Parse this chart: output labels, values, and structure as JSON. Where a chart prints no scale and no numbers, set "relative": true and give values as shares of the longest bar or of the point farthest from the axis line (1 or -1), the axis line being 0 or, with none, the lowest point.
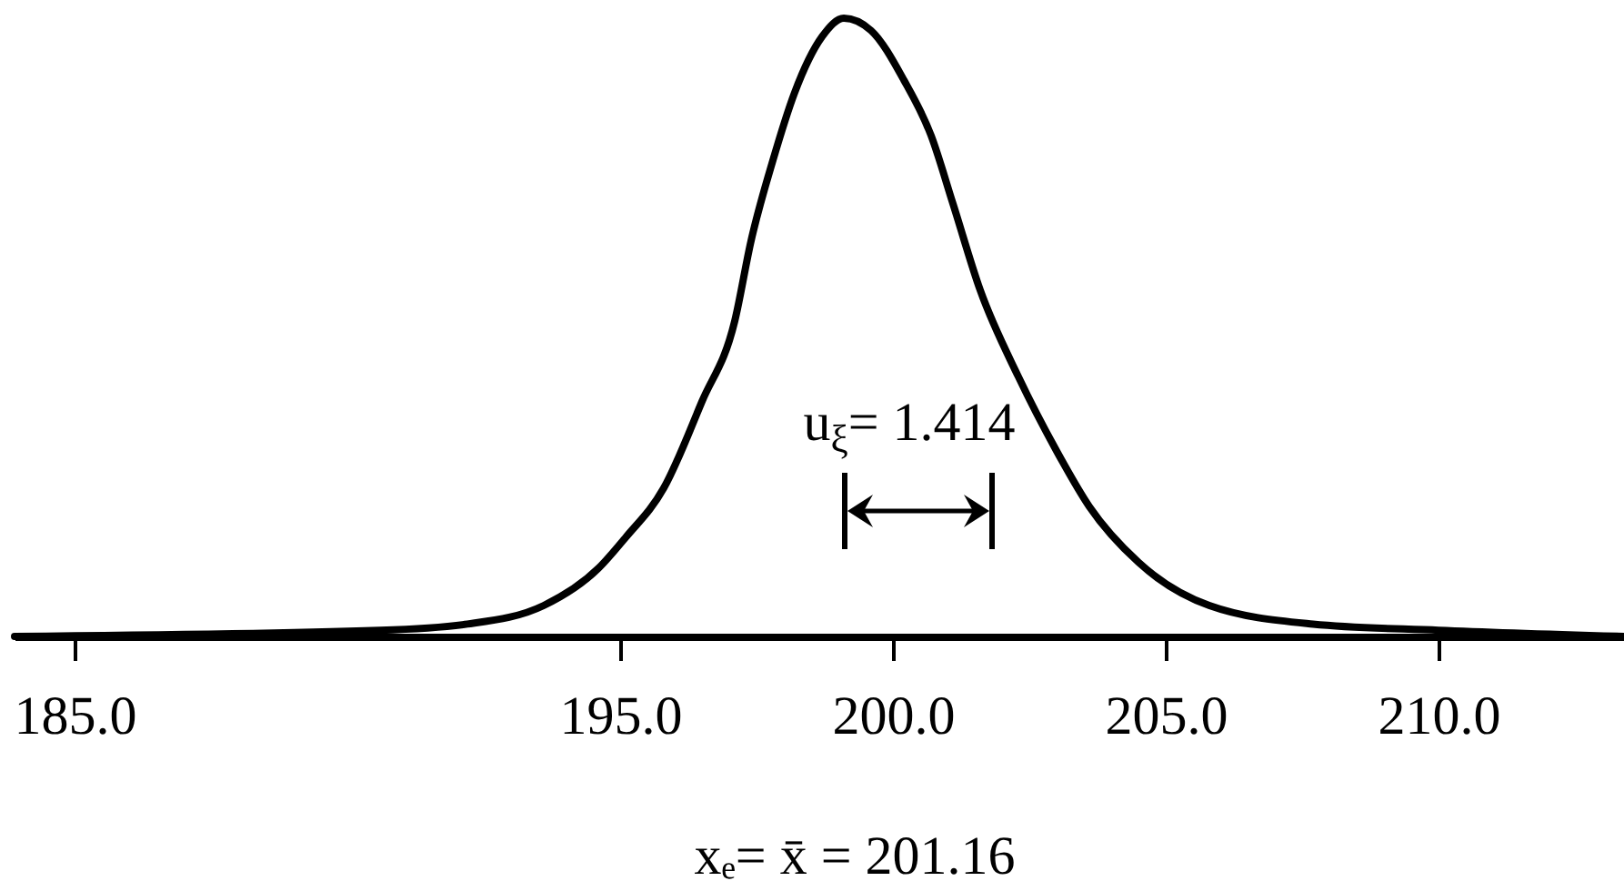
{
  "chart_data": {
    "type": "line",
    "relative": true,
    "x": [
      183.9,
      190.6,
      192.2,
      193.6,
      194.6,
      195.1,
      195.8,
      196.5,
      197.1,
      197.4,
      197.8,
      198.2,
      198.7,
      199.1,
      199.6,
      200.2,
      200.7,
      201.1,
      201.6,
      202.3,
      203.0,
      203.6,
      204.5,
      205.8,
      207.7,
      210.0,
      213.4
    ],
    "series": [
      {
        "color": "#000000",
        "values": [
          0,
          0.01,
          0.02,
          0.05,
          0.11,
          0.16,
          0.24,
          0.38,
          0.51,
          0.64,
          0.77,
          0.88,
          0.97,
          1,
          0.98,
          0.9,
          0.81,
          0.7,
          0.56,
          0.42,
          0.3,
          0.21,
          0.12,
          0.05,
          0.02,
          0.01,
          0
        ]
      }
    ],
    "xlim": [
      183.9,
      213.4
    ],
    "xticks": [
      {
        "value": 185,
        "label": "185.0"
      },
      {
        "value": 195,
        "label": "195.0"
      },
      {
        "value": 200,
        "label": "200.0"
      },
      {
        "value": 205,
        "label": "205.0"
      },
      {
        "value": 210,
        "label": "210.0"
      }
    ],
    "annotations": [
      "u$_{ξ}$= 1.414",
      "xₑ= x̄ = 201.16"
    ]
  }
}
